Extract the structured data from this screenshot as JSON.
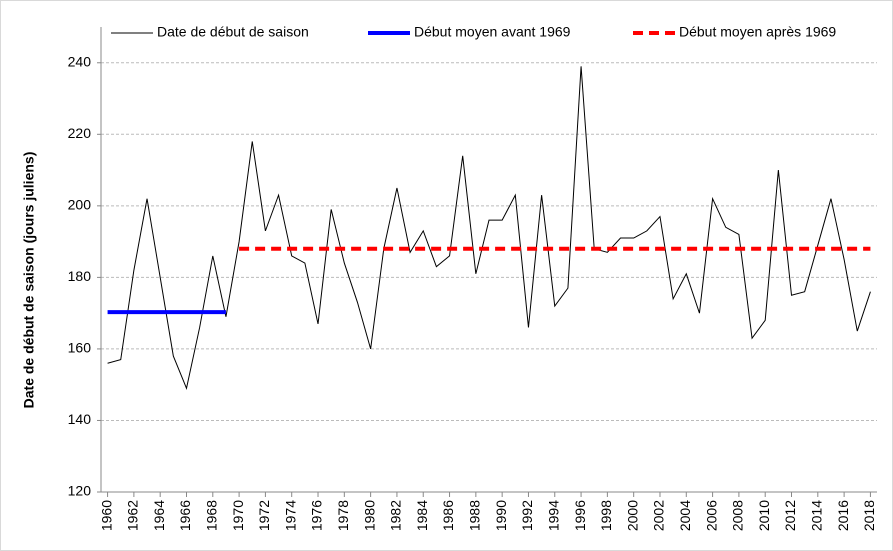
{
  "chart_data": {
    "type": "line",
    "y_label": "Date de début de saison (jours juliens)",
    "xlim": [
      1959.5,
      2018.5
    ],
    "xticks": [
      1960,
      1962,
      1964,
      1966,
      1968,
      1970,
      1972,
      1974,
      1976,
      1978,
      1980,
      1982,
      1984,
      1986,
      1988,
      1990,
      1992,
      1994,
      1996,
      1998,
      2000,
      2002,
      2004,
      2006,
      2008,
      2010,
      2012,
      2014,
      2016,
      2018
    ],
    "ylim": [
      120,
      250
    ],
    "yticks": [
      120,
      140,
      160,
      180,
      200,
      220,
      240
    ],
    "grid": true,
    "legend": "top",
    "series": [
      {
        "name": "Date de début de saison",
        "color": "#000000",
        "width": 1,
        "dash": "none",
        "x": [
          1960,
          1961,
          1962,
          1963,
          1964,
          1965,
          1966,
          1967,
          1968,
          1969,
          1970,
          1971,
          1972,
          1973,
          1974,
          1975,
          1976,
          1977,
          1978,
          1979,
          1980,
          1981,
          1982,
          1983,
          1984,
          1985,
          1986,
          1987,
          1988,
          1989,
          1990,
          1991,
          1992,
          1993,
          1994,
          1995,
          1996,
          1997,
          1998,
          1999,
          2000,
          2001,
          2002,
          2003,
          2004,
          2005,
          2006,
          2007,
          2008,
          2009,
          2010,
          2011,
          2012,
          2013,
          2014,
          2015,
          2016,
          2017,
          2018
        ],
        "values": [
          156,
          157,
          182,
          202,
          180,
          158,
          149,
          166,
          186,
          169,
          190,
          218,
          193,
          203,
          186,
          184,
          167,
          199,
          184,
          173,
          160,
          188,
          205,
          187,
          193,
          183,
          186,
          214,
          181,
          196,
          196,
          203,
          166,
          203,
          172,
          177,
          239,
          188,
          187,
          191,
          191,
          193,
          197,
          174,
          181,
          170,
          202,
          194,
          192,
          163,
          168,
          210,
          175,
          176,
          189,
          202,
          185,
          165,
          176
        ]
      },
      {
        "name": "Début moyen avant 1969",
        "color": "#0000ff",
        "width": 4,
        "dash": "none",
        "x": [
          1960,
          1969
        ],
        "values": [
          170.3,
          170.3
        ]
      },
      {
        "name": "Début moyen après 1969",
        "color": "#ff0000",
        "width": 4,
        "dash": "10 6",
        "x": [
          1970,
          2018
        ],
        "values": [
          188,
          188
        ]
      }
    ]
  }
}
